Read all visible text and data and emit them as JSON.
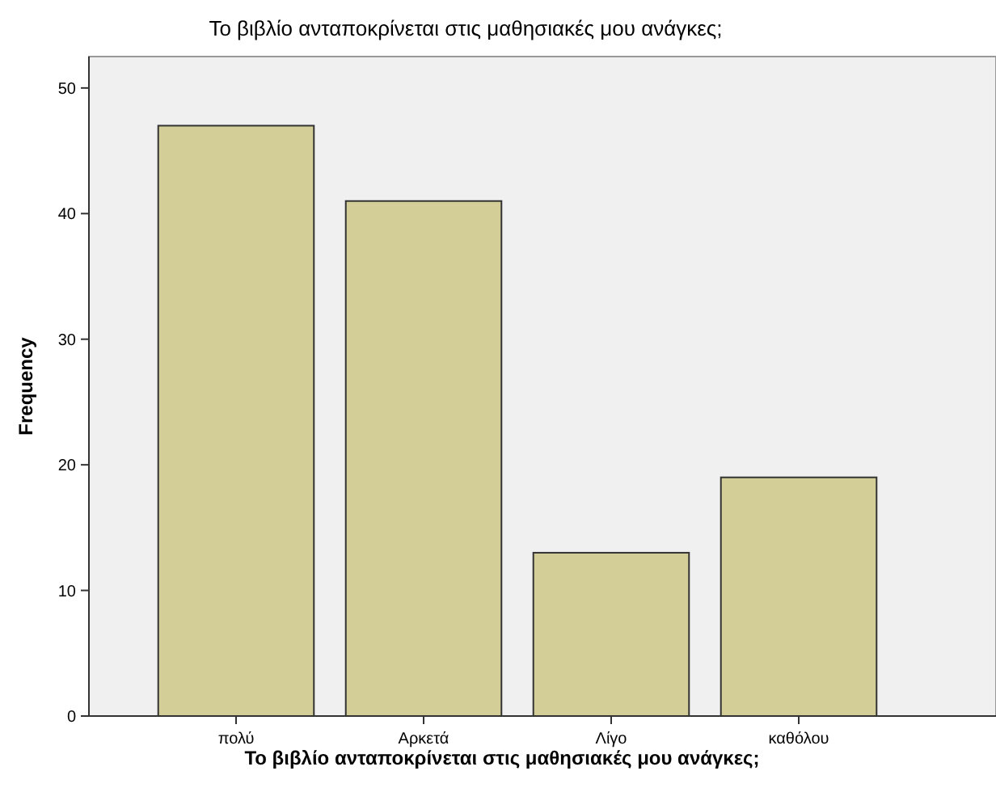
{
  "chart_data": {
    "type": "bar",
    "title": "Το βιβλίο ανταποκρίνεται στις μαθησιακές μου ανάγκες;",
    "xlabel": "Το βιβλίο ανταποκρίνεται στις μαθησιακές μου ανάγκες;",
    "ylabel": "Frequency",
    "categories": [
      "πολύ",
      "Αρκετά",
      "Λίγο",
      "καθόλου"
    ],
    "values": [
      47,
      41,
      13,
      19
    ],
    "color": "#d3ce97",
    "ylim": [
      0,
      52.5
    ],
    "yticks": [
      0,
      10,
      20,
      30,
      40,
      50
    ],
    "grid": false
  }
}
